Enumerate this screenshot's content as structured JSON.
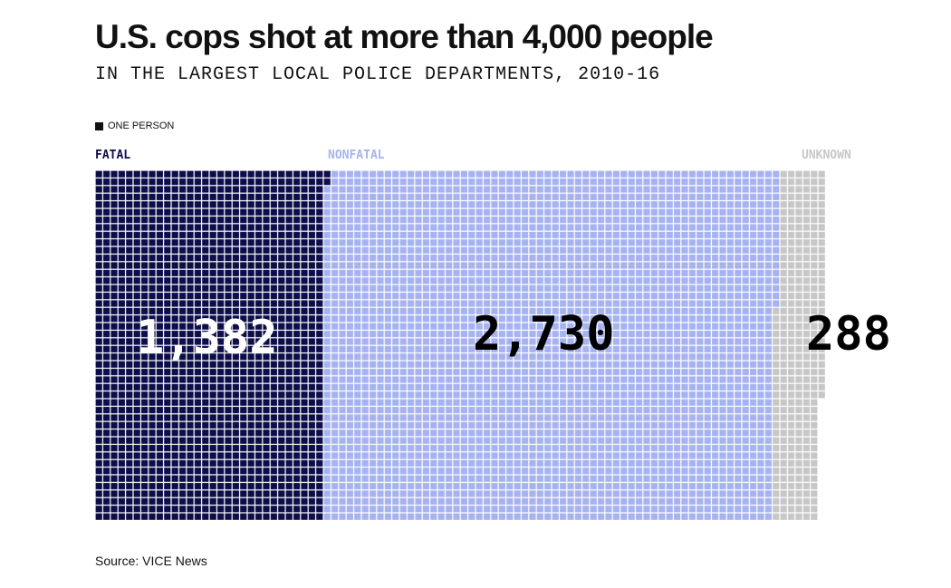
{
  "title": "U.S. cops shot at more than 4,000 people",
  "subtitle": "IN THE LARGEST LOCAL POLICE DEPARTMENTS, 2010-16",
  "legend": {
    "label": "ONE PERSON",
    "swatch_color": "#111111"
  },
  "source": "Source: VICE News",
  "chart_data": {
    "type": "waffle",
    "unit": "one person",
    "categories": [
      "FATAL",
      "NONFATAL",
      "UNKNOWN"
    ],
    "values": [
      1382,
      2730,
      288
    ],
    "value_labels": [
      "1,382",
      "2,730",
      "288"
    ],
    "colors": [
      "#0d0d4a",
      "#a6b3f0",
      "#c7c7c7"
    ],
    "label_colors": [
      "#0d0d4a",
      "#a6b3f0",
      "#c7c7c7"
    ],
    "number_colors": [
      "#ffffff",
      "#000000",
      "#000000"
    ],
    "grid_lines": "#ffffff"
  }
}
